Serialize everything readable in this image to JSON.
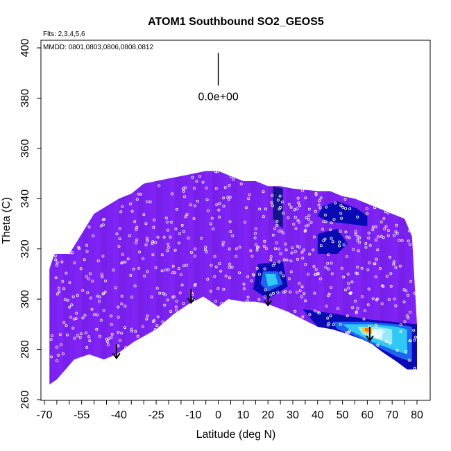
{
  "chart_data": {
    "type": "heatmap",
    "title": "ATOM1 Southbound SO2_GEOS5",
    "subtitle": "Flts: 2,3,4,5,6",
    "annotation": "MMDD: 0801,0803,0806,0808,0812",
    "xlabel": "Latitude (deg N)",
    "ylabel": "Theta (C)",
    "xlim": [
      -70,
      80
    ],
    "ylim": [
      260,
      400
    ],
    "xticks": [
      -70,
      -55,
      -40,
      -25,
      -10,
      0,
      10,
      20,
      30,
      40,
      50,
      60,
      70,
      80
    ],
    "xtick_labels": [
      "-70",
      "-55",
      "-40",
      "-25",
      "-10",
      "0",
      "10",
      "20",
      "30",
      "40",
      "50",
      "60",
      "70",
      "80"
    ],
    "xminor_step": 5,
    "yticks": [
      260,
      280,
      300,
      320,
      340,
      360,
      380,
      400
    ],
    "ytick_labels": [
      "260",
      "280",
      "300",
      "320",
      "340",
      "360",
      "380",
      "400"
    ],
    "colorbar_label": "0.0e+00",
    "colorbar_x": 0,
    "colorbar_range": [
      385,
      398
    ],
    "colors": {
      "background_fill": "#7f22f4",
      "low": "#6d1ed8",
      "dark_blue": "#0a0ab4",
      "navy": "#14148c",
      "blue": "#1e64f0",
      "cyan": "#30c8f5",
      "light_cyan": "#9ae6fa",
      "white_patch": "#e6f8ff",
      "yellow": "#f5d020",
      "orange": "#f07820",
      "points": "#ffffff",
      "axis": "#000000"
    },
    "data_boundary": {
      "top": [
        [
          -68,
          312
        ],
        [
          -66,
          318
        ],
        [
          -60,
          318
        ],
        [
          -55,
          326
        ],
        [
          -50,
          334
        ],
        [
          -45,
          337
        ],
        [
          -40,
          340
        ],
        [
          -35,
          342
        ],
        [
          -30,
          346
        ],
        [
          -25,
          347
        ],
        [
          -20,
          348
        ],
        [
          -15,
          349
        ],
        [
          -10,
          350
        ],
        [
          -5,
          351
        ],
        [
          0,
          351
        ],
        [
          5,
          349
        ],
        [
          10,
          347
        ],
        [
          15,
          347
        ],
        [
          20,
          345
        ],
        [
          25,
          345
        ],
        [
          30,
          344
        ],
        [
          40,
          343
        ],
        [
          45,
          343
        ],
        [
          50,
          341
        ],
        [
          55,
          340
        ],
        [
          60,
          338
        ],
        [
          65,
          336
        ],
        [
          70,
          334
        ],
        [
          75,
          332
        ],
        [
          78,
          325
        ],
        [
          80,
          290
        ],
        [
          80,
          275
        ]
      ],
      "bottom": [
        [
          -68,
          266
        ],
        [
          -65,
          268
        ],
        [
          -58,
          276
        ],
        [
          -52,
          278
        ],
        [
          -46,
          276
        ],
        [
          -41,
          278
        ],
        [
          -34,
          283
        ],
        [
          -25,
          288
        ],
        [
          -18,
          294
        ],
        [
          -12,
          298
        ],
        [
          -6,
          301
        ],
        [
          0,
          297
        ],
        [
          4,
          300
        ],
        [
          10,
          299
        ],
        [
          15,
          299
        ],
        [
          20,
          298
        ],
        [
          28,
          295
        ],
        [
          34,
          292
        ],
        [
          40,
          289
        ],
        [
          46,
          288
        ],
        [
          52,
          286
        ],
        [
          58,
          284
        ],
        [
          62,
          282
        ],
        [
          66,
          279
        ],
        [
          72,
          275
        ],
        [
          76,
          272
        ],
        [
          80,
          272
        ]
      ]
    },
    "patches": [
      {
        "name": "upper-right-band",
        "color": "#0a0ab4",
        "points": [
          [
            42,
            337
          ],
          [
            48,
            339
          ],
          [
            56,
            336
          ],
          [
            60,
            333
          ],
          [
            60,
            329
          ],
          [
            52,
            330
          ],
          [
            44,
            331
          ],
          [
            40,
            333
          ]
        ]
      },
      {
        "name": "upper-mid-patch",
        "color": "#14148c",
        "points": [
          [
            22,
            345
          ],
          [
            26,
            344
          ],
          [
            26,
            328
          ],
          [
            22,
            332
          ]
        ]
      },
      {
        "name": "right-mid-patch",
        "color": "#0a0ab4",
        "points": [
          [
            40,
            326
          ],
          [
            48,
            328
          ],
          [
            52,
            322
          ],
          [
            48,
            318
          ],
          [
            40,
            318
          ]
        ]
      },
      {
        "name": "center-blob-dark",
        "color": "#0a0ab4",
        "points": [
          [
            16,
            314
          ],
          [
            26,
            315
          ],
          [
            28,
            305
          ],
          [
            20,
            300
          ],
          [
            14,
            304
          ]
        ]
      },
      {
        "name": "center-blob-blue",
        "color": "#1e64f0",
        "points": [
          [
            18,
            311
          ],
          [
            24,
            311
          ],
          [
            26,
            306
          ],
          [
            20,
            303
          ],
          [
            17,
            306
          ]
        ]
      },
      {
        "name": "center-blob-cyan",
        "color": "#30c8f5",
        "points": [
          [
            19,
            310
          ],
          [
            23,
            310
          ],
          [
            24,
            306
          ],
          [
            20,
            305
          ]
        ]
      },
      {
        "name": "north-tail-dark",
        "color": "#0a0ab4",
        "points": [
          [
            34,
            296
          ],
          [
            48,
            294
          ],
          [
            60,
            292
          ],
          [
            70,
            291
          ],
          [
            80,
            290
          ],
          [
            80,
            272
          ],
          [
            76,
            272
          ],
          [
            72,
            275
          ],
          [
            66,
            279
          ],
          [
            60,
            283
          ],
          [
            50,
            287
          ],
          [
            40,
            289
          ]
        ]
      },
      {
        "name": "north-tail-blue",
        "color": "#1e64f0",
        "points": [
          [
            46,
            291
          ],
          [
            60,
            291
          ],
          [
            72,
            290
          ],
          [
            78,
            289
          ],
          [
            78,
            275
          ],
          [
            72,
            277
          ],
          [
            64,
            281
          ],
          [
            56,
            285
          ],
          [
            48,
            288
          ]
        ]
      },
      {
        "name": "north-tail-cyan",
        "color": "#30c8f5",
        "points": [
          [
            50,
            290
          ],
          [
            62,
            290
          ],
          [
            72,
            289
          ],
          [
            76,
            288
          ],
          [
            76,
            278
          ],
          [
            70,
            280
          ],
          [
            62,
            283
          ],
          [
            54,
            287
          ]
        ]
      },
      {
        "name": "north-tail-lightcyan",
        "color": "#9ae6fa",
        "points": [
          [
            56,
            289
          ],
          [
            64,
            289
          ],
          [
            70,
            288
          ],
          [
            70,
            282
          ],
          [
            64,
            284
          ],
          [
            58,
            286
          ]
        ]
      },
      {
        "name": "north-tail-white",
        "color": "#e6f8ff",
        "points": [
          [
            60,
            288
          ],
          [
            66,
            288
          ],
          [
            66,
            284
          ],
          [
            61,
            285
          ]
        ]
      },
      {
        "name": "north-tail-yellow",
        "color": "#f5d020",
        "points": [
          [
            58,
            289
          ],
          [
            62,
            289
          ],
          [
            62,
            286
          ],
          [
            58,
            287
          ]
        ]
      },
      {
        "name": "north-tail-orange",
        "color": "#f07820",
        "points": [
          [
            59,
            288.5
          ],
          [
            61,
            288.5
          ],
          [
            61,
            287
          ],
          [
            59,
            287.3
          ]
        ]
      }
    ],
    "arrows": [
      [
        -41,
        282
      ],
      [
        -11,
        304
      ],
      [
        20,
        303
      ],
      [
        61,
        289
      ]
    ],
    "arrow_length": 5.5,
    "n_points": 600,
    "point_seed": 7
  }
}
